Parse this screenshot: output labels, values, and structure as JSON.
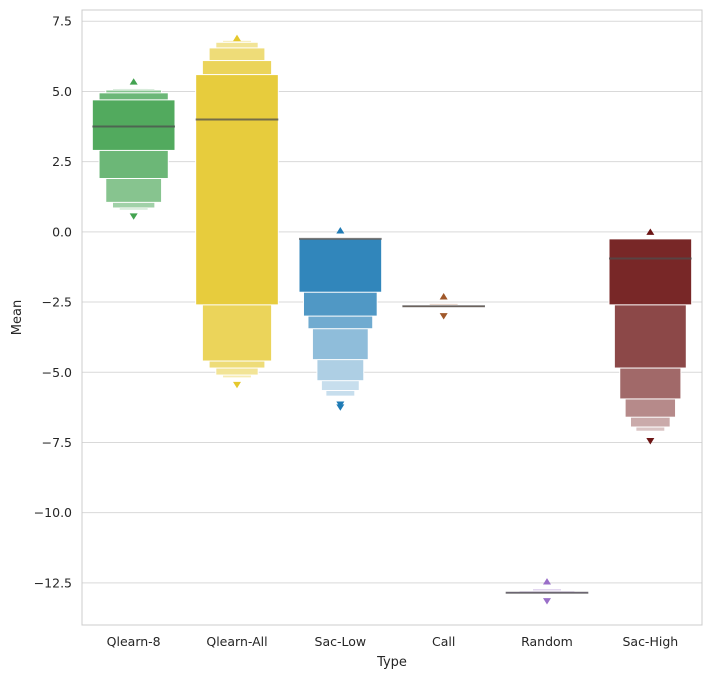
{
  "chart_data": {
    "type": "boxen",
    "title": "",
    "xlabel": "Type",
    "ylabel": "Mean",
    "categories": [
      "Qlearn-8",
      "Qlearn-All",
      "Sac-Low",
      "Call",
      "Random",
      "Sac-High"
    ],
    "ylim": [
      -14.0,
      7.9
    ],
    "yticks": [
      7.5,
      5.0,
      2.5,
      0.0,
      -2.5,
      -5.0,
      -7.5,
      -10.0,
      -12.5
    ],
    "ytick_labels": [
      "7.5",
      "5.0",
      "2.5",
      "0.0",
      "−2.5",
      "−5.0",
      "−7.5",
      "−10.0",
      "−12.5"
    ],
    "grid": true,
    "series": [
      {
        "category": "Qlearn-8",
        "color": "#43a350",
        "median": 3.75,
        "levels": [
          [
            2.9,
            4.7
          ],
          [
            1.9,
            4.95
          ],
          [
            1.05,
            5.05
          ],
          [
            0.85,
            5.1
          ],
          [
            0.78,
            5.13
          ]
        ],
        "outliers_low": [
          0.55
        ],
        "outliers_high": [
          5.35
        ]
      },
      {
        "category": "Qlearn-All",
        "color": "#e5c82c",
        "median": 4.0,
        "levels": [
          [
            -2.6,
            5.6
          ],
          [
            -4.6,
            6.1
          ],
          [
            -4.85,
            6.55
          ],
          [
            -5.1,
            6.75
          ],
          [
            -5.2,
            6.82
          ]
        ],
        "outliers_low": [
          -5.45
        ],
        "outliers_high": [
          6.9
        ]
      },
      {
        "category": "Sac-Low",
        "color": "#1f7bb5",
        "median": -0.25,
        "levels": [
          [
            -2.15,
            -0.25
          ],
          [
            -3.0,
            -0.25
          ],
          [
            -3.45,
            -0.25
          ],
          [
            -4.55,
            -0.25
          ],
          [
            -5.3,
            -0.25
          ],
          [
            -5.65,
            -0.25
          ],
          [
            -5.85,
            -0.25
          ]
        ],
        "outliers_low": [
          -6.15,
          -6.25
        ],
        "outliers_high": [
          0.05
        ]
      },
      {
        "category": "Call",
        "color": "#a0582a",
        "median": -2.65,
        "levels": [
          [
            -2.68,
            -2.62
          ],
          [
            -2.7,
            -2.6
          ],
          [
            -2.72,
            -2.55
          ]
        ],
        "outliers_low": [
          -3.0
        ],
        "outliers_high": [
          -2.3
        ]
      },
      {
        "category": "Random",
        "color": "#9a6fc8",
        "median": -12.85,
        "levels": [
          [
            -12.88,
            -12.82
          ],
          [
            -12.9,
            -12.78
          ],
          [
            -12.92,
            -12.72
          ]
        ],
        "outliers_low": [
          -13.15
        ],
        "outliers_high": [
          -12.45
        ]
      },
      {
        "category": "Sac-High",
        "color": "#6c1414",
        "median": -0.95,
        "levels": [
          [
            -2.6,
            -0.25
          ],
          [
            -4.85,
            -0.25
          ],
          [
            -5.95,
            -0.25
          ],
          [
            -6.6,
            -0.25
          ],
          [
            -6.95,
            -0.25
          ],
          [
            -7.1,
            -0.25
          ]
        ],
        "outliers_low": [
          -7.45
        ],
        "outliers_high": [
          0.0
        ]
      }
    ]
  }
}
